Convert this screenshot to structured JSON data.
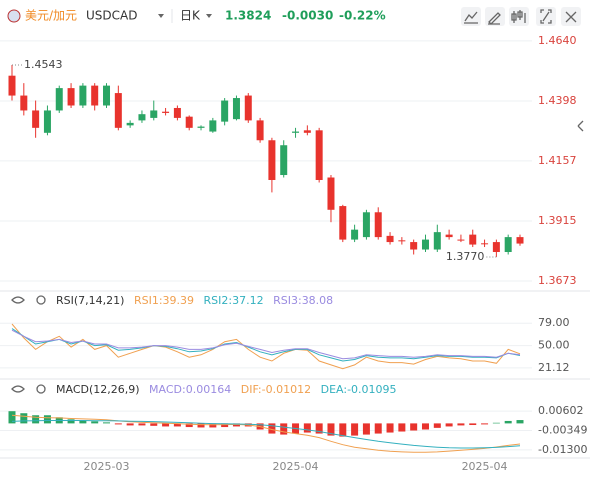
{
  "header": {
    "pair_name": "美元/加元",
    "symbol": "USDCAD",
    "period": "日K",
    "change": "-0.0030",
    "change_percent": "-0.22%"
  },
  "chart_data": [
    {
      "type": "candlestick",
      "up_color": "#2aa564",
      "down_color": "#e8332d",
      "categories": [
        null,
        null,
        null,
        null,
        null,
        null,
        null,
        null,
        "2025-03",
        null,
        null,
        null,
        null,
        null,
        null,
        null,
        null,
        null,
        null,
        null,
        null,
        null,
        null,
        null,
        "2025-04",
        null,
        null,
        null,
        null,
        null,
        null,
        null,
        null,
        null,
        null,
        null,
        null,
        null,
        null,
        null,
        "2025-04",
        null,
        null,
        null
      ],
      "open": [
        1.45,
        1.442,
        1.436,
        1.427,
        1.436,
        1.445,
        1.438,
        1.446,
        1.438,
        1.443,
        1.43,
        1.432,
        1.433,
        1.4355,
        1.437,
        1.4335,
        1.429,
        1.4275,
        1.4315,
        1.4325,
        1.442,
        1.432,
        1.424,
        1.41,
        1.427,
        1.428,
        1.428,
        1.409,
        1.3975,
        1.384,
        1.385,
        1.395,
        1.3855,
        1.3837,
        1.383,
        1.38,
        1.38,
        1.386,
        1.384,
        1.386,
        1.3825,
        1.383,
        1.379,
        1.385
      ],
      "high": [
        1.4543,
        1.447,
        1.44,
        1.438,
        1.446,
        1.447,
        1.447,
        1.447,
        1.447,
        1.446,
        1.432,
        1.436,
        1.44,
        1.437,
        1.438,
        1.434,
        1.43,
        1.433,
        1.441,
        1.442,
        1.443,
        1.433,
        1.425,
        1.424,
        1.429,
        1.43,
        1.429,
        1.41,
        1.398,
        1.39,
        1.396,
        1.397,
        1.387,
        1.385,
        1.384,
        1.386,
        1.39,
        1.388,
        1.386,
        1.388,
        1.384,
        1.384,
        1.386,
        1.386
      ],
      "low": [
        1.44,
        1.434,
        1.425,
        1.426,
        1.435,
        1.437,
        1.437,
        1.436,
        1.437,
        1.428,
        1.429,
        1.431,
        1.432,
        1.434,
        1.432,
        1.428,
        1.428,
        1.427,
        1.43,
        1.432,
        1.431,
        1.423,
        1.403,
        1.409,
        1.425,
        1.426,
        1.407,
        1.391,
        1.383,
        1.383,
        1.384,
        1.384,
        1.382,
        1.382,
        1.378,
        1.379,
        1.379,
        1.384,
        1.383,
        1.381,
        1.381,
        1.377,
        1.378,
        1.3815
      ],
      "close": [
        1.442,
        1.436,
        1.429,
        1.436,
        1.445,
        1.438,
        1.446,
        1.438,
        1.446,
        1.429,
        1.431,
        1.4345,
        1.436,
        1.435,
        1.433,
        1.429,
        1.4295,
        1.432,
        1.44,
        1.441,
        1.432,
        1.424,
        1.408,
        1.422,
        1.4275,
        1.427,
        1.408,
        1.396,
        1.384,
        1.388,
        1.395,
        1.385,
        1.383,
        1.3835,
        1.38,
        1.384,
        1.387,
        1.385,
        1.3838,
        1.382,
        1.3822,
        1.379,
        1.385,
        1.3824
      ],
      "annotations": [
        {
          "value": 1.4543,
          "label": "1.4543",
          "field": "high"
        },
        {
          "value": 1.377,
          "label": "1.3770",
          "field": "low"
        }
      ],
      "ylim": [
        1.3637,
        1.4684
      ],
      "yticks": [
        {
          "value": 1.464,
          "label": "1.4640"
        },
        1.4398,
        1.4157,
        1.3915,
        1.3673
      ],
      "tick_color": "#d9433d"
    },
    {
      "type": "line",
      "title": "RSI(7,14,21)",
      "series": [
        {
          "name": "RSI1:",
          "color": "#f0a050",
          "values": [
            78,
            60,
            45,
            55,
            62,
            48,
            58,
            45,
            50,
            35,
            40,
            45,
            50,
            48,
            42,
            35,
            38,
            45,
            55,
            58,
            45,
            35,
            30,
            40,
            45,
            44,
            30,
            25,
            20,
            25,
            35,
            30,
            28,
            28,
            26,
            32,
            36,
            34,
            33,
            30,
            30,
            27,
            45,
            39.39
          ]
        },
        {
          "name": "RSI2:",
          "color": "#33b0bf",
          "values": [
            72,
            62,
            52,
            55,
            58,
            52,
            56,
            50,
            51,
            44,
            45,
            47,
            50,
            49,
            46,
            42,
            43,
            46,
            52,
            54,
            48,
            42,
            38,
            42,
            45,
            45,
            38,
            34,
            30,
            32,
            37,
            35,
            34,
            34,
            33,
            35,
            37,
            36,
            36,
            35,
            35,
            34,
            40,
            37.12
          ]
        },
        {
          "name": "RSI3:",
          "color": "#9a8be0",
          "values": [
            70,
            62,
            55,
            56,
            58,
            54,
            56,
            52,
            52,
            47,
            47,
            48,
            50,
            50,
            48,
            45,
            45,
            47,
            51,
            53,
            49,
            45,
            41,
            44,
            46,
            46,
            41,
            37,
            33,
            34,
            38,
            37,
            36,
            36,
            35,
            36,
            38,
            37,
            37,
            36,
            36,
            35,
            40,
            38.08
          ]
        }
      ],
      "ylim": [
        8,
        100
      ],
      "yticks": [
        {
          "value": 79,
          "label": "79.00"
        },
        {
          "value": 50,
          "label": "50.00"
        },
        21.12
      ],
      "tick_color": "#555555"
    },
    {
      "type": "macd",
      "title": "MACD(12,26,9)",
      "up_color": "#2aa564",
      "down_color": "#e8332d",
      "series": [
        {
          "name": "MACD:",
          "color": "#9a8be0",
          "values": [
            0.006,
            0.005,
            0.004,
            0.004,
            0.003,
            0.002,
            0.0015,
            0.001,
            0.0005,
            -0.0005,
            -0.001,
            -0.001,
            -0.0012,
            -0.0015,
            -0.0015,
            -0.0018,
            -0.002,
            -0.002,
            -0.0018,
            -0.0015,
            -0.0015,
            -0.003,
            -0.005,
            -0.0055,
            -0.005,
            -0.0045,
            -0.005,
            -0.006,
            -0.0065,
            -0.006,
            -0.0055,
            -0.005,
            -0.0045,
            -0.004,
            -0.0035,
            -0.003,
            -0.0022,
            -0.0015,
            -0.001,
            -0.0008,
            -0.0005,
            0.0003,
            0.0012,
            0.00164
          ]
        },
        {
          "name": "DIF:",
          "color": "#f0a050",
          "values": [
            0.004,
            0.0035,
            0.003,
            0.0028,
            0.0027,
            0.0024,
            0.0022,
            0.002,
            0.0018,
            0.0012,
            0.0008,
            0.0005,
            0.0003,
            0.0001,
            -0.0001,
            -0.0004,
            -0.0006,
            -0.0007,
            -0.0006,
            -0.0005,
            -0.0008,
            -0.0016,
            -0.003,
            -0.0042,
            -0.005,
            -0.0058,
            -0.007,
            -0.0088,
            -0.0105,
            -0.0117,
            -0.0125,
            -0.0132,
            -0.0137,
            -0.014,
            -0.0142,
            -0.0142,
            -0.014,
            -0.0136,
            -0.0132,
            -0.0128,
            -0.0123,
            -0.0116,
            -0.0108,
            -0.01012
          ]
        },
        {
          "name": "DEA:",
          "color": "#33b0bf",
          "values": [
            0.001,
            0.0012,
            0.0013,
            0.0014,
            0.0014,
            0.0014,
            0.0014,
            0.0013,
            0.0013,
            0.0012,
            0.0011,
            0.001,
            0.0009,
            0.0007,
            0.0005,
            0.0003,
            0.0001,
            -0.0001,
            -0.0002,
            -0.0003,
            -0.0004,
            -0.0007,
            -0.0012,
            -0.0018,
            -0.0025,
            -0.0032,
            -0.004,
            -0.005,
            -0.006,
            -0.007,
            -0.0079,
            -0.0088,
            -0.0095,
            -0.0102,
            -0.0108,
            -0.0113,
            -0.0117,
            -0.012,
            -0.0121,
            -0.0121,
            -0.012,
            -0.0118,
            -0.0114,
            -0.01095
          ]
        }
      ],
      "ylim": [
        -0.018,
        0.0115
      ],
      "yticks": [
        0.00602,
        -0.00349,
        {
          "value": -0.013,
          "label": "-0.01300"
        }
      ],
      "tick_color": "#555555"
    }
  ]
}
